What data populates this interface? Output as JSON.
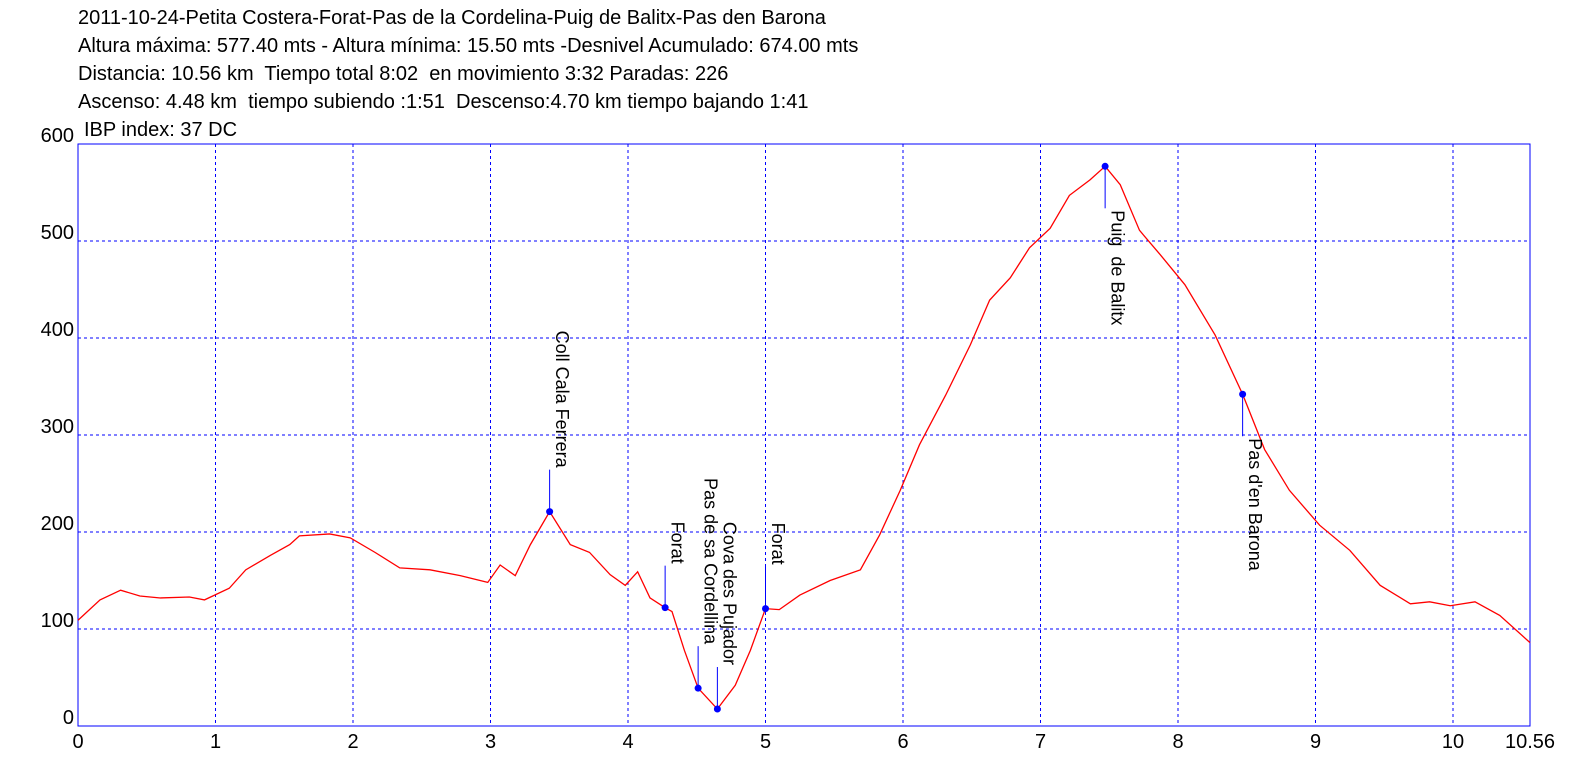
{
  "chart_data": {
    "type": "line",
    "title_lines": [
      "2011-10-24-Petita Costera-Forat-Pas de la Cordelina-Puig de Balitx-Pas den Barona",
      "Altura máxima: 577.40 mts - Altura mínima: 15.50 mts -Desnivel Acumulado: 674.00 mts",
      "Distancia: 10.56 km  Tiempo total 8:02  en movimiento 3:32 Paradas: 226",
      "Ascenso: 4.48 km  tiempo subiendo :1:51  Descenso:4.70 km tiempo bajando 1:41",
      "IBP index: 37 DC"
    ],
    "color": "#ff0000",
    "grid": true,
    "axis_color": "#0000ff",
    "grid_color": "#0000ff",
    "marker_color": "#0000ff",
    "x": [
      0,
      0.16,
      0.31,
      0.45,
      0.6,
      0.81,
      0.92,
      1.1,
      1.22,
      1.4,
      1.54,
      1.61,
      1.83,
      1.98,
      2.16,
      2.34,
      2.56,
      2.78,
      2.98,
      3.07,
      3.18,
      3.29,
      3.43,
      3.58,
      3.72,
      3.87,
      3.98,
      4.07,
      4.16,
      4.27,
      4.32,
      4.41,
      4.51,
      4.65,
      4.78,
      4.89,
      5.0,
      5.1,
      5.25,
      5.47,
      5.69,
      5.83,
      5.98,
      6.12,
      6.31,
      6.49,
      6.63,
      6.78,
      6.92,
      7.07,
      7.21,
      7.36,
      7.47,
      7.58,
      7.72,
      7.87,
      8.05,
      8.27,
      8.47,
      8.63,
      8.81,
      9.03,
      9.25,
      9.47,
      9.69,
      9.83,
      9.98,
      10.16,
      10.34,
      10.56
    ],
    "values": [
      109,
      130,
      140,
      134,
      132,
      133,
      130,
      142,
      161,
      176,
      187,
      196,
      198,
      194,
      179,
      163,
      161,
      155,
      148,
      166,
      155,
      187,
      221,
      187,
      179,
      156,
      145,
      159,
      132,
      122,
      118,
      78,
      39,
      17.5,
      42,
      78,
      121,
      120,
      135,
      150,
      161,
      197,
      243,
      290,
      341,
      393,
      439,
      462,
      493,
      513,
      547,
      563,
      577,
      558,
      511,
      486,
      455,
      403,
      342,
      285,
      243,
      207,
      181,
      145,
      126,
      128,
      124,
      128,
      114,
      86
    ],
    "annotations": [
      {
        "x": 3.43,
        "y": 221,
        "label": "Coll Cala Ferrera"
      },
      {
        "x": 4.27,
        "y": 122,
        "label": "Forat"
      },
      {
        "x": 4.51,
        "y": 39,
        "label": "Pas de sa Cordellina"
      },
      {
        "x": 4.65,
        "y": 17.5,
        "label": "Cova des Pujador"
      },
      {
        "x": 5.0,
        "y": 121,
        "label": "Forat"
      },
      {
        "x": 7.47,
        "y": 577,
        "label": "Puig  de Balitx"
      },
      {
        "x": 8.47,
        "y": 342,
        "label": "Pas d'en Barona"
      }
    ],
    "xlim": [
      0,
      10.56
    ],
    "xticks": [
      0,
      1,
      2,
      3,
      4,
      5,
      6,
      7,
      8,
      9,
      10,
      10.56
    ],
    "ylim": [
      0,
      600
    ],
    "yticks": [
      0,
      100,
      200,
      300,
      400,
      500,
      600
    ]
  }
}
